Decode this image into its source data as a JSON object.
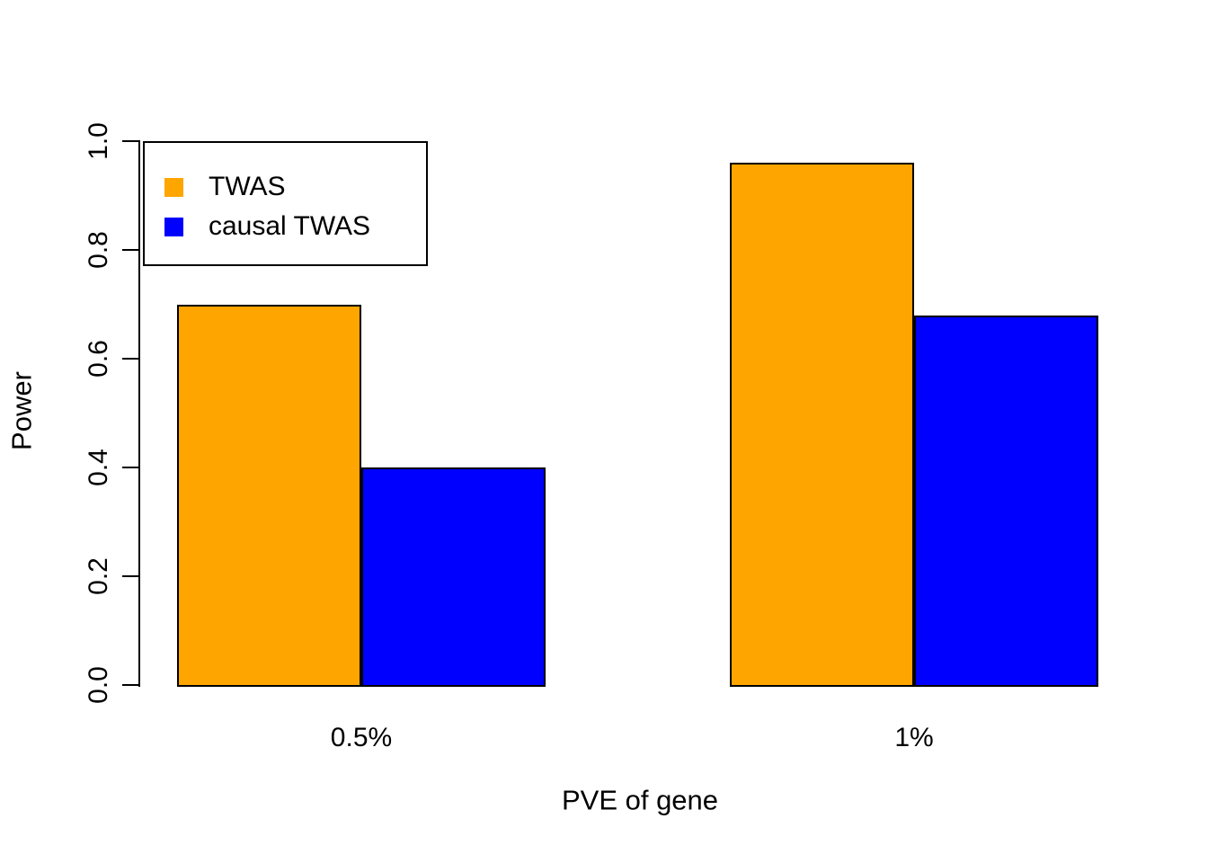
{
  "figure": {
    "background": "#ffffff"
  },
  "chart_data": {
    "type": "bar",
    "title": "",
    "xlabel": "PVE of gene",
    "ylabel": "Power",
    "categories": [
      "0.5%",
      "1%"
    ],
    "series": [
      {
        "name": "TWAS",
        "color": "#FFA500",
        "values": [
          0.7,
          0.96
        ]
      },
      {
        "name": "causal TWAS",
        "color": "#0000FF",
        "values": [
          0.4,
          0.68
        ]
      }
    ],
    "ylim": [
      0.0,
      1.0
    ],
    "ytick_labels": [
      "0.0",
      "0.2",
      "0.4",
      "0.6",
      "0.8",
      "1.0"
    ],
    "grid": false,
    "legend_position": "top-left",
    "bar_border_color": "#000000",
    "axis_color": "#000000"
  }
}
